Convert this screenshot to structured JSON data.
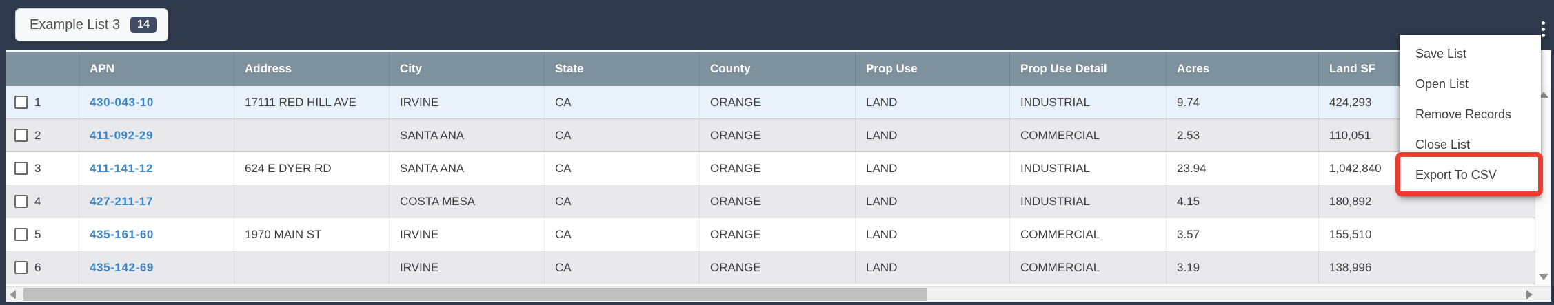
{
  "topbar": {
    "list_name": "Example List 3",
    "record_count": "14"
  },
  "table": {
    "columns": [
      "",
      "APN",
      "Address",
      "City",
      "State",
      "County",
      "Prop Use",
      "Prop Use Detail",
      "Acres",
      "Land SF"
    ],
    "rows": [
      {
        "num": "1",
        "apn": "430-043-10",
        "address": "17111 RED HILL AVE",
        "city": "IRVINE",
        "state": "CA",
        "county": "ORANGE",
        "prop_use": "LAND",
        "prop_use_detail": "INDUSTRIAL",
        "acres": "9.74",
        "land_sf": "424,293"
      },
      {
        "num": "2",
        "apn": "411-092-29",
        "address": "",
        "city": "SANTA ANA",
        "state": "CA",
        "county": "ORANGE",
        "prop_use": "LAND",
        "prop_use_detail": "COMMERCIAL",
        "acres": "2.53",
        "land_sf": "110,051"
      },
      {
        "num": "3",
        "apn": "411-141-12",
        "address": "624 E DYER RD",
        "city": "SANTA ANA",
        "state": "CA",
        "county": "ORANGE",
        "prop_use": "LAND",
        "prop_use_detail": "INDUSTRIAL",
        "acres": "23.94",
        "land_sf": "1,042,840"
      },
      {
        "num": "4",
        "apn": "427-211-17",
        "address": "",
        "city": "COSTA MESA",
        "state": "CA",
        "county": "ORANGE",
        "prop_use": "LAND",
        "prop_use_detail": "INDUSTRIAL",
        "acres": "4.15",
        "land_sf": "180,892"
      },
      {
        "num": "5",
        "apn": "435-161-60",
        "address": "1970 MAIN ST",
        "city": "IRVINE",
        "state": "CA",
        "county": "ORANGE",
        "prop_use": "LAND",
        "prop_use_detail": "COMMERCIAL",
        "acres": "3.57",
        "land_sf": "155,510"
      },
      {
        "num": "6",
        "apn": "435-142-69",
        "address": "",
        "city": "IRVINE",
        "state": "CA",
        "county": "ORANGE",
        "prop_use": "LAND",
        "prop_use_detail": "COMMERCIAL",
        "acres": "3.19",
        "land_sf": "138,996"
      }
    ]
  },
  "menu": {
    "items": [
      "Save List",
      "Open List",
      "Remove Records",
      "Close List",
      "Export To CSV"
    ],
    "highlighted_item": "Export To CSV"
  },
  "icons": {
    "kebab": "kebab-menu-icon",
    "scroll_up": "scroll-up-arrow-icon",
    "scroll_down": "scroll-down-arrow-icon",
    "scroll_left": "scroll-left-arrow-icon",
    "scroll_right": "scroll-right-arrow-icon"
  },
  "colors": {
    "frame": "#2e3a4c",
    "header_bg": "#7e929d",
    "row_highlight": "#e9f2fb",
    "row_alt": "#e9e9ec",
    "apn_link": "#3a86c8",
    "badge_bg": "#3e4d63",
    "annotation_red": "#ee3b30"
  }
}
